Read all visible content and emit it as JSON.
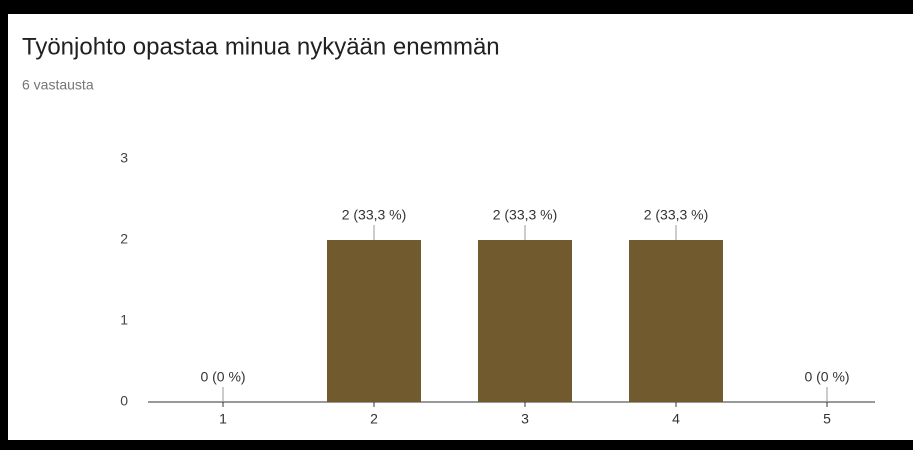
{
  "chart_data": {
    "type": "bar",
    "title": "Työnjohto opastaa minua nykyään enemmän",
    "subtitle": "6 vastausta",
    "categories": [
      "1",
      "2",
      "3",
      "4",
      "5"
    ],
    "values": [
      0,
      2,
      2,
      2,
      0
    ],
    "value_labels": [
      "0 (0 %)",
      "2 (33,3 %)",
      "2 (33,3 %)",
      "2 (33,3 %)",
      "0 (0 %)"
    ],
    "color": "#715b2e",
    "ylim": [
      0,
      3
    ],
    "yticks": [
      0,
      1,
      2,
      3
    ],
    "grid": false
  }
}
